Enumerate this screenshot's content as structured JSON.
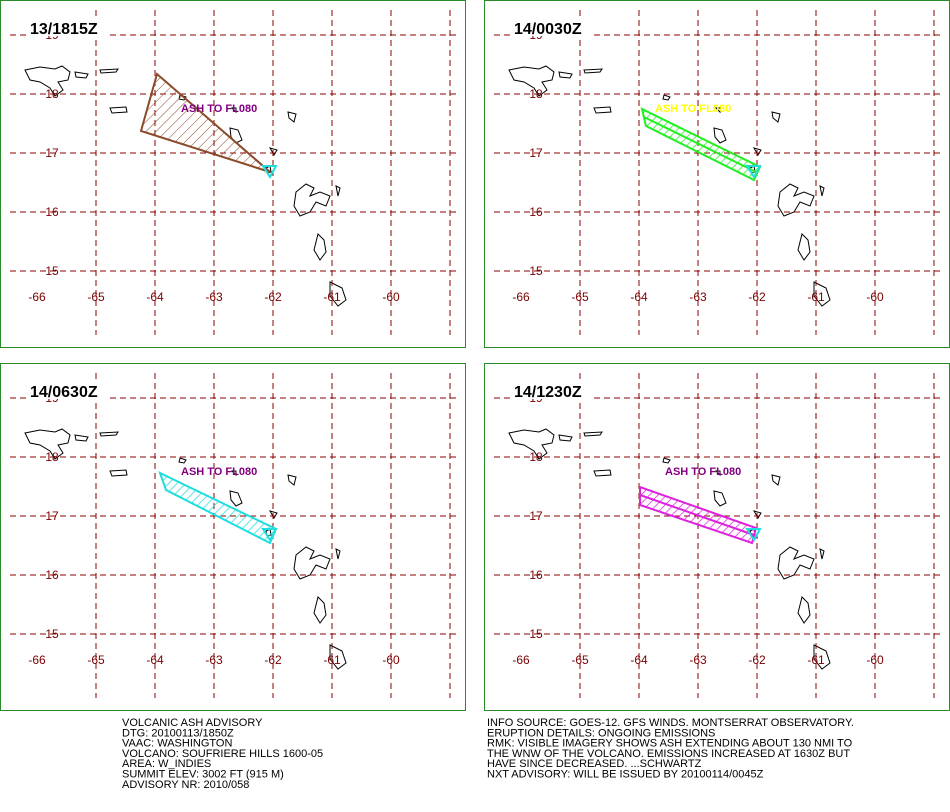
{
  "panels": [
    {
      "time": "13/1815Z",
      "label": "ASH TO FL080"
    },
    {
      "time": "14/0030Z",
      "label": "ASH TO FL080"
    },
    {
      "time": "14/0630Z",
      "label": "ASH TO FL080"
    },
    {
      "time": "14/1230Z",
      "label": "ASH TO FL080"
    }
  ],
  "latitudes": [
    "19",
    "18",
    "17",
    "16",
    "15"
  ],
  "longitudes": [
    "-66",
    "-65",
    "-64",
    "-63",
    "-62",
    "-61",
    "-60"
  ],
  "advisory": {
    "left": [
      "VOLCANIC ASH ADVISORY",
      "DTG: 20100113/1850Z",
      "VAAC: WASHINGTON",
      "VOLCANO: SOUFRIERE HILLS 1600-05",
      "AREA: W_INDIES",
      "SUMMIT ELEV: 3002 FT (915 M)",
      "ADVISORY NR: 2010/058"
    ],
    "right": [
      "INFO SOURCE: GOES-12. GFS WINDS. MONTSERRAT OBSERVATORY.",
      "ERUPTION DETAILS: ONGOING EMISSIONS",
      "RMK: VISIBLE IMAGERY SHOWS ASH EXTENDING ABOUT 130 NMI TO",
      "THE WNW OF THE VOLCANO. EMISSIONS INCREASED AT 1630Z BUT",
      "HAVE SINCE DECREASED. ...SCHWARTZ",
      "NXT ADVISORY: WILL BE ISSUED BY 20100114/0045Z"
    ]
  }
}
